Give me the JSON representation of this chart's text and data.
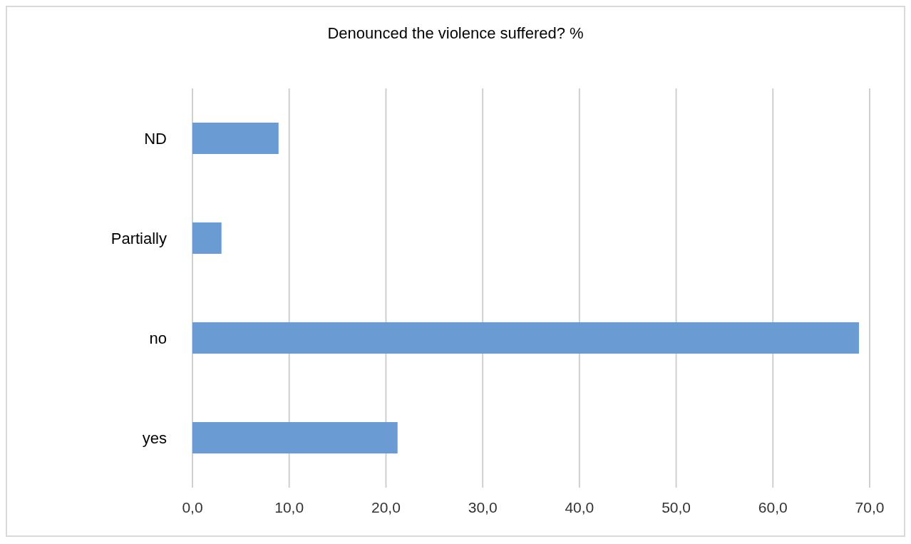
{
  "chart_data": {
    "type": "bar",
    "orientation": "horizontal",
    "title": "Denounced the violence suffered? %",
    "categories": [
      "ND",
      "Partially",
      "no",
      "yes"
    ],
    "values": [
      8.9,
      3.0,
      68.9,
      21.2
    ],
    "color": "#6a9bd3",
    "xlim": [
      0,
      70
    ],
    "xticks": [
      {
        "value": 0,
        "label": "0,0"
      },
      {
        "value": 10,
        "label": "10,0"
      },
      {
        "value": 20,
        "label": "20,0"
      },
      {
        "value": 30,
        "label": "30,0"
      },
      {
        "value": 40,
        "label": "40,0"
      },
      {
        "value": 50,
        "label": "50,0"
      },
      {
        "value": 60,
        "label": "60,0"
      },
      {
        "value": 70,
        "label": "70,0"
      }
    ],
    "grid": "x",
    "legend": false
  }
}
